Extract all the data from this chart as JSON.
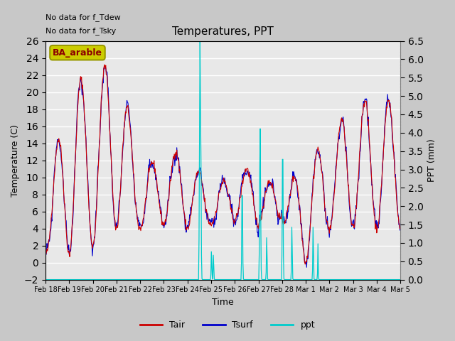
{
  "title": "Temperatures, PPT",
  "xlabel": "Time",
  "ylabel_left": "Temperature (C)",
  "ylabel_right": "PPT (mm)",
  "annotation_line1": "No data for f_Tdew",
  "annotation_line2": "No data for f_Tsky",
  "legend_label": "BA_arable",
  "ylim_left": [
    -2,
    26
  ],
  "ylim_right": [
    0.0,
    6.5
  ],
  "yticks_left": [
    -2,
    0,
    2,
    4,
    6,
    8,
    10,
    12,
    14,
    16,
    18,
    20,
    22,
    24,
    26
  ],
  "yticks_right": [
    0.0,
    0.5,
    1.0,
    1.5,
    2.0,
    2.5,
    3.0,
    3.5,
    4.0,
    4.5,
    5.0,
    5.5,
    6.0,
    6.5
  ],
  "fig_bg_color": "#c8c8c8",
  "axes_bg_color": "#e8e8e8",
  "tair_color": "#cc0000",
  "tsurf_color": "#0000cc",
  "ppt_color": "#00cccc",
  "legend_box_fc": "#cccc00",
  "legend_box_ec": "#999900",
  "xticklabels": [
    "Feb 18",
    "Feb 19",
    "Feb 20",
    "Feb 21",
    "Feb 22",
    "Feb 23",
    "Feb 24",
    "Feb 25",
    "Feb 26",
    "Feb 27",
    "Feb 28",
    "Mar 1",
    "Mar 2",
    "Mar 3",
    "Mar 4",
    "Mar 5"
  ],
  "figsize": [
    6.4,
    4.8
  ],
  "dpi": 100
}
